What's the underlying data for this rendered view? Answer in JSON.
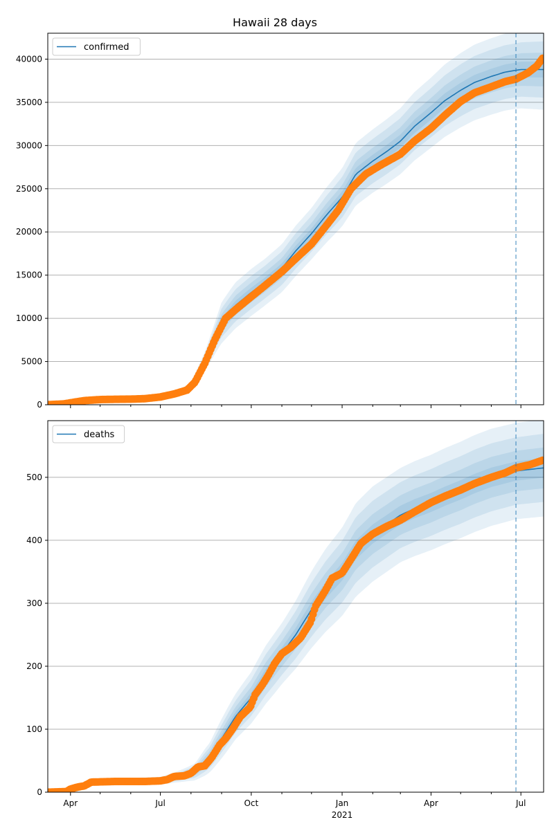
{
  "figure": {
    "title": "Hawaii 28 days"
  },
  "colors": {
    "model": "#1f77b4",
    "observed": "#ff7f0e",
    "grid": "#b0b0b0",
    "band": "#1f77b4"
  },
  "chart_data": [
    {
      "type": "line",
      "legend": {
        "label": "confirmed",
        "placement": "top-left"
      },
      "x_range": [
        "2020-03-09",
        "2021-07-24"
      ],
      "ylim": [
        0,
        43000
      ],
      "yticks": [
        0,
        5000,
        10000,
        15000,
        20000,
        25000,
        30000,
        35000,
        40000
      ],
      "ytick_labels": [
        "0",
        "5000",
        "10000",
        "15000",
        "20000",
        "25000",
        "30000",
        "35000",
        "40000"
      ],
      "forecast_start": "2021-06-26",
      "grid": "horizontal",
      "model_median": [
        [
          "2020-03-09",
          5
        ],
        [
          "2020-04-15",
          450
        ],
        [
          "2020-05-15",
          630
        ],
        [
          "2020-06-15",
          650
        ],
        [
          "2020-07-01",
          900
        ],
        [
          "2020-07-20",
          1500
        ],
        [
          "2020-08-01",
          2300
        ],
        [
          "2020-08-15",
          5000
        ],
        [
          "2020-09-01",
          9500
        ],
        [
          "2020-09-15",
          11500
        ],
        [
          "2020-10-01",
          13000
        ],
        [
          "2020-10-15",
          14200
        ],
        [
          "2020-11-01",
          15800
        ],
        [
          "2020-11-15",
          17800
        ],
        [
          "2020-12-01",
          19800
        ],
        [
          "2020-12-15",
          21800
        ],
        [
          "2021-01-01",
          24000
        ],
        [
          "2021-01-15",
          26700
        ],
        [
          "2021-02-01",
          28200
        ],
        [
          "2021-02-15",
          29300
        ],
        [
          "2021-03-01",
          30500
        ],
        [
          "2021-03-15",
          32200
        ],
        [
          "2021-04-01",
          33800
        ],
        [
          "2021-04-15",
          35200
        ],
        [
          "2021-05-01",
          36400
        ],
        [
          "2021-05-15",
          37300
        ],
        [
          "2021-06-01",
          38000
        ],
        [
          "2021-06-15",
          38500
        ],
        [
          "2021-07-01",
          38800
        ],
        [
          "2021-07-24",
          38800
        ]
      ],
      "band_widths": [
        [
          "2020-03-09",
          0.06
        ],
        [
          "2020-07-15",
          0.08
        ],
        [
          "2020-08-15",
          0.22
        ],
        [
          "2020-09-01",
          0.25
        ],
        [
          "2020-10-15",
          0.19
        ],
        [
          "2020-12-01",
          0.15
        ],
        [
          "2021-02-01",
          0.13
        ],
        [
          "2021-04-01",
          0.12
        ],
        [
          "2021-06-26",
          0.115
        ],
        [
          "2021-07-24",
          0.12
        ]
      ],
      "observed": [
        [
          "2020-03-09",
          5
        ],
        [
          "2020-03-25",
          90
        ],
        [
          "2020-04-05",
          300
        ],
        [
          "2020-04-15",
          480
        ],
        [
          "2020-05-01",
          600
        ],
        [
          "2020-05-15",
          630
        ],
        [
          "2020-06-01",
          650
        ],
        [
          "2020-06-15",
          700
        ],
        [
          "2020-07-01",
          900
        ],
        [
          "2020-07-15",
          1250
        ],
        [
          "2020-07-28",
          1700
        ],
        [
          "2020-08-05",
          2600
        ],
        [
          "2020-08-15",
          4800
        ],
        [
          "2020-08-25",
          7500
        ],
        [
          "2020-09-05",
          10000
        ],
        [
          "2020-09-15",
          11000
        ],
        [
          "2020-10-01",
          12500
        ],
        [
          "2020-10-15",
          13800
        ],
        [
          "2020-11-01",
          15400
        ],
        [
          "2020-11-15",
          16900
        ],
        [
          "2020-12-01",
          18600
        ],
        [
          "2020-12-15",
          20600
        ],
        [
          "2020-12-28",
          22500
        ],
        [
          "2021-01-10",
          25000
        ],
        [
          "2021-01-25",
          26700
        ],
        [
          "2021-02-10",
          27800
        ],
        [
          "2021-03-01",
          29000
        ],
        [
          "2021-03-15",
          30500
        ],
        [
          "2021-04-01",
          32000
        ],
        [
          "2021-04-15",
          33500
        ],
        [
          "2021-05-01",
          35100
        ],
        [
          "2021-05-15",
          36100
        ],
        [
          "2021-06-01",
          36800
        ],
        [
          "2021-06-15",
          37400
        ],
        [
          "2021-06-26",
          37700
        ],
        [
          "2021-07-08",
          38400
        ],
        [
          "2021-07-17",
          39200
        ],
        [
          "2021-07-23",
          40100
        ]
      ],
      "xtick_labels": []
    },
    {
      "type": "line",
      "legend": {
        "label": "deaths",
        "placement": "top-left"
      },
      "x_range": [
        "2020-03-09",
        "2021-07-24"
      ],
      "ylim": [
        0,
        590
      ],
      "yticks": [
        0,
        100,
        200,
        300,
        400,
        500
      ],
      "ytick_labels": [
        "0",
        "100",
        "200",
        "300",
        "400",
        "500"
      ],
      "forecast_start": "2021-06-26",
      "grid": "horizontal",
      "model_median": [
        [
          "2020-03-09",
          0
        ],
        [
          "2020-04-01",
          5
        ],
        [
          "2020-04-20",
          15
        ],
        [
          "2020-06-01",
          17
        ],
        [
          "2020-07-01",
          18
        ],
        [
          "2020-07-20",
          25
        ],
        [
          "2020-08-05",
          32
        ],
        [
          "2020-08-20",
          55
        ],
        [
          "2020-09-01",
          85
        ],
        [
          "2020-09-15",
          120
        ],
        [
          "2020-10-01",
          150
        ],
        [
          "2020-10-15",
          185
        ],
        [
          "2020-11-01",
          220
        ],
        [
          "2020-11-15",
          250
        ],
        [
          "2020-12-01",
          290
        ],
        [
          "2020-12-15",
          320
        ],
        [
          "2021-01-01",
          350
        ],
        [
          "2021-01-15",
          385
        ],
        [
          "2021-02-01",
          410
        ],
        [
          "2021-02-15",
          425
        ],
        [
          "2021-03-01",
          440
        ],
        [
          "2021-03-15",
          450
        ],
        [
          "2021-04-01",
          460
        ],
        [
          "2021-04-15",
          470
        ],
        [
          "2021-05-01",
          480
        ],
        [
          "2021-05-15",
          490
        ],
        [
          "2021-06-01",
          500
        ],
        [
          "2021-06-26",
          510
        ],
        [
          "2021-07-24",
          515
        ]
      ],
      "band_widths": [
        [
          "2020-03-09",
          0.3
        ],
        [
          "2020-07-15",
          0.35
        ],
        [
          "2020-08-15",
          0.45
        ],
        [
          "2020-09-15",
          0.3
        ],
        [
          "2020-11-01",
          0.22
        ],
        [
          "2021-01-01",
          0.2
        ],
        [
          "2021-03-01",
          0.17
        ],
        [
          "2021-06-26",
          0.15
        ],
        [
          "2021-07-24",
          0.15
        ]
      ],
      "observed": [
        [
          "2020-03-09",
          0
        ],
        [
          "2020-03-28",
          1
        ],
        [
          "2020-04-01",
          5
        ],
        [
          "2020-04-08",
          8
        ],
        [
          "2020-04-15",
          10
        ],
        [
          "2020-04-22",
          16
        ],
        [
          "2020-05-15",
          17
        ],
        [
          "2020-06-15",
          17
        ],
        [
          "2020-07-01",
          18
        ],
        [
          "2020-07-08",
          20
        ],
        [
          "2020-07-15",
          25
        ],
        [
          "2020-07-25",
          26
        ],
        [
          "2020-08-01",
          30
        ],
        [
          "2020-08-08",
          40
        ],
        [
          "2020-08-15",
          42
        ],
        [
          "2020-08-22",
          55
        ],
        [
          "2020-08-30",
          75
        ],
        [
          "2020-09-05",
          85
        ],
        [
          "2020-09-12",
          100
        ],
        [
          "2020-09-20",
          120
        ],
        [
          "2020-09-30",
          135
        ],
        [
          "2020-10-05",
          155
        ],
        [
          "2020-10-12",
          170
        ],
        [
          "2020-10-18",
          185
        ],
        [
          "2020-10-25",
          205
        ],
        [
          "2020-11-01",
          220
        ],
        [
          "2020-11-10",
          230
        ],
        [
          "2020-11-20",
          245
        ],
        [
          "2020-11-30",
          270
        ],
        [
          "2020-12-05",
          295
        ],
        [
          "2020-12-15",
          320
        ],
        [
          "2020-12-22",
          340
        ],
        [
          "2021-01-01",
          348
        ],
        [
          "2021-01-10",
          370
        ],
        [
          "2021-01-20",
          395
        ],
        [
          "2021-02-01",
          410
        ],
        [
          "2021-02-15",
          422
        ],
        [
          "2021-03-01",
          432
        ],
        [
          "2021-03-15",
          445
        ],
        [
          "2021-04-01",
          460
        ],
        [
          "2021-04-15",
          470
        ],
        [
          "2021-05-01",
          480
        ],
        [
          "2021-05-15",
          490
        ],
        [
          "2021-06-01",
          500
        ],
        [
          "2021-06-15",
          507
        ],
        [
          "2021-06-26",
          515
        ],
        [
          "2021-07-10",
          520
        ],
        [
          "2021-07-23",
          527
        ]
      ],
      "xticks_major": [
        "2020-04-01",
        "2020-07-01",
        "2020-10-01",
        "2021-01-01",
        "2021-04-01",
        "2021-07-01"
      ],
      "xtick_labels": [
        "Apr",
        "Jul",
        "Oct",
        "Jan",
        "Apr",
        "Jul"
      ],
      "year_label": "2021"
    }
  ]
}
